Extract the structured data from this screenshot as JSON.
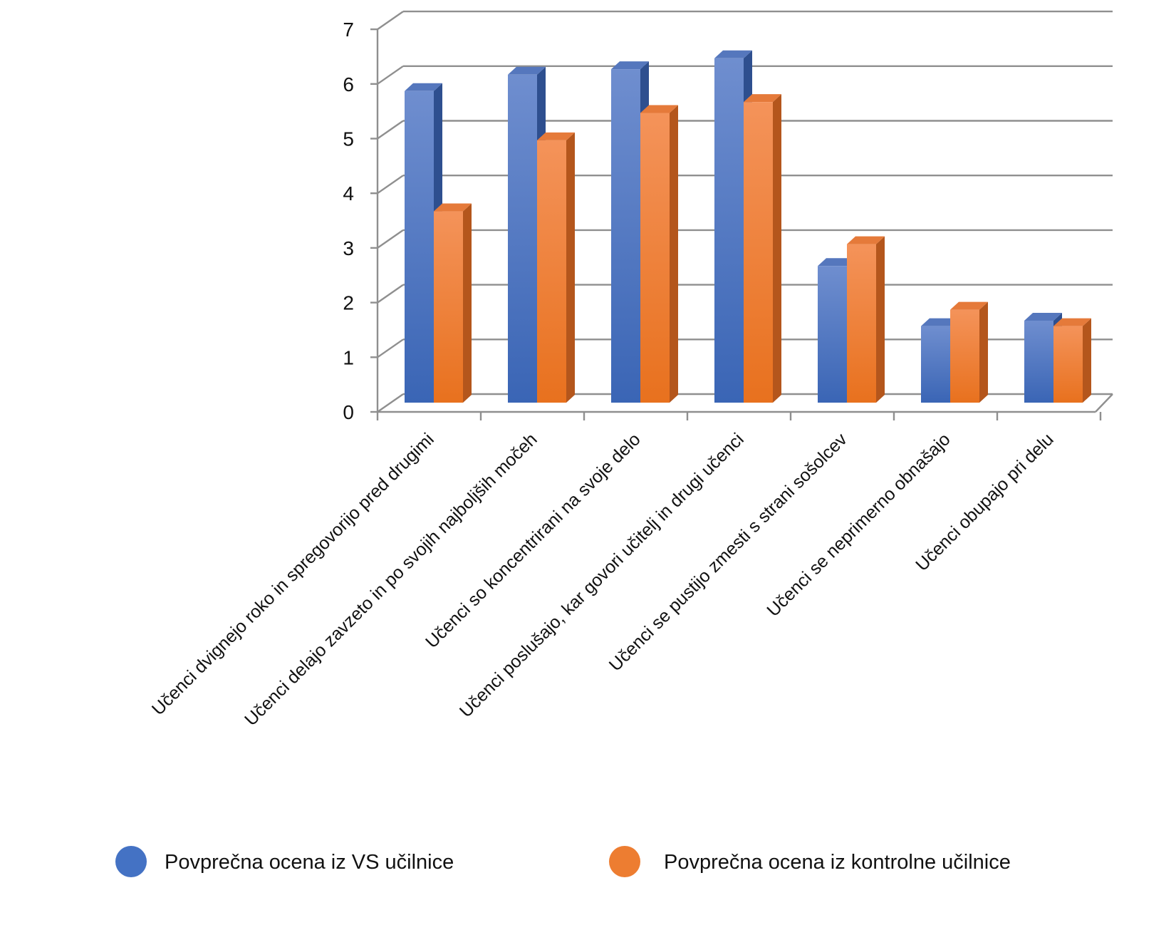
{
  "chart_data": {
    "type": "bar",
    "style": "3d-clustered-column",
    "ylim": [
      0,
      7
    ],
    "yticks": [
      "0",
      "1",
      "2",
      "3",
      "4",
      "5",
      "6",
      "7"
    ],
    "grid": true,
    "legend_position": "bottom",
    "categories": [
      "Učenci dvignejo roko in spregovorijo pred drugimi",
      "Učenci delajo zavzeto in po svojih najboljših močeh",
      "Učenci so koncentrirani na svoje delo",
      "Učenci poslušajo, kar govori učitelj in drugi učenci",
      "Učenci se pustijo zmesti s strani sošolcev",
      "Učenci se neprimerno obnašajo",
      "Učenci obupajo pri delu"
    ],
    "series": [
      {
        "name": "Povprečna ocena iz VS učilnice",
        "color": "#4472C4",
        "values": [
          5.7,
          6.0,
          6.1,
          6.3,
          2.5,
          1.4,
          1.5
        ]
      },
      {
        "name": "Povprečna ocena iz kontrolne učilnice",
        "color": "#ED7D31",
        "values": [
          3.5,
          4.8,
          5.3,
          5.5,
          2.9,
          1.7,
          1.4
        ]
      }
    ]
  }
}
